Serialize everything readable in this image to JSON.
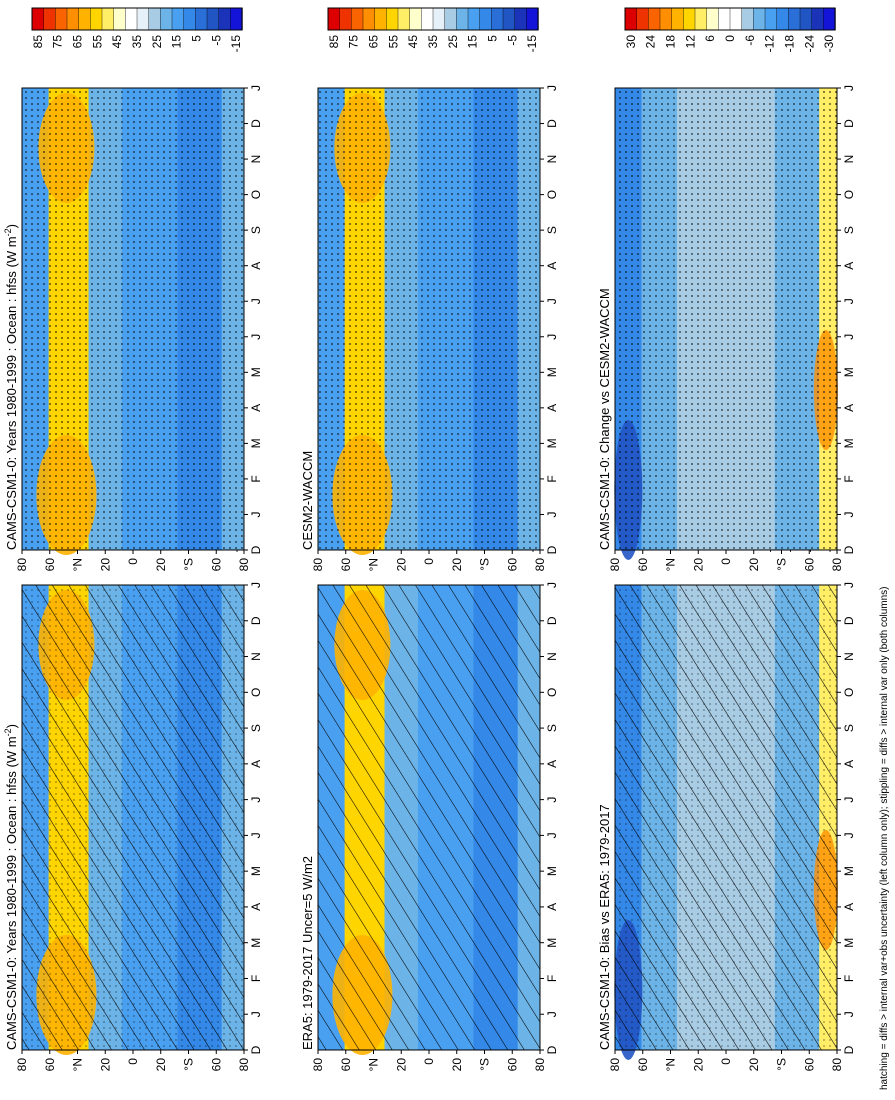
{
  "footer_note": "hatching = diffs > internal var+obs uncertainty (left column only); stippling = diffs > internal var only (both columns)",
  "colors": {
    "scale_mean": [
      "#dd0000",
      "#ee3300",
      "#f96400",
      "#ff8f00",
      "#ffb200",
      "#ffd500",
      "#ffee66",
      "#ffffcc",
      "#ffffff",
      "#e6f0f8",
      "#a8cce4",
      "#6cb4e8",
      "#4aa0f0",
      "#3388e8",
      "#2a6ed8",
      "#2255c4",
      "#1a33b8",
      "#1414d8"
    ],
    "scale_diff": [
      "#dd0000",
      "#ee3300",
      "#f96400",
      "#ff8f00",
      "#ffb200",
      "#ffd500",
      "#ffee66",
      "#ffffcc",
      "#ffffff",
      "#ffffff",
      "#a8cce4",
      "#6cb4e8",
      "#4aa0f0",
      "#3388e8",
      "#2a6ed8",
      "#2255c4",
      "#1a33b8",
      "#1414d8"
    ]
  },
  "chart_data": [
    {
      "type": "heatmap",
      "panel": "top-left",
      "title": "CAMS-CSM1-0: Years 1980-1999 : Ocean : hfss (W m⁻²)",
      "title_prefix": "CAMS-CSM1-0: Years 1980-1999 : Ocean : hfss (W m",
      "title_sup": "-2",
      "title_suffix": ")",
      "x_ticks": [
        "D",
        "J",
        "F",
        "M",
        "A",
        "M",
        "J",
        "J",
        "A",
        "S",
        "O",
        "N",
        "D",
        "J"
      ],
      "y_ticks": [
        "80",
        "60",
        "°N",
        "20",
        "0",
        "20",
        "°S",
        "60",
        "80"
      ],
      "colorbar_labels": [
        "85",
        "75",
        "65",
        "55",
        "45",
        "35",
        "25",
        "15",
        "5",
        "-5",
        "-15"
      ],
      "overlay": "hatching+stippling"
    },
    {
      "type": "heatmap",
      "panel": "top-right",
      "title": "CAMS-CSM1-0: Years 1980-1999 : Ocean : hfss (W m⁻²)",
      "title_prefix": "CAMS-CSM1-0: Years 1980-1999 : Ocean : hfss (W m",
      "title_sup": "-2",
      "title_suffix": ")",
      "x_ticks": [
        "D",
        "J",
        "F",
        "M",
        "A",
        "M",
        "J",
        "J",
        "A",
        "S",
        "O",
        "N",
        "D",
        "J"
      ],
      "y_ticks": [
        "80",
        "60",
        "°N",
        "20",
        "0",
        "20",
        "°S",
        "60",
        "80"
      ],
      "colorbar_labels": [
        "85",
        "75",
        "65",
        "55",
        "45",
        "35",
        "25",
        "15",
        "5",
        "-5",
        "-15"
      ],
      "overlay": "stippling"
    },
    {
      "type": "heatmap",
      "panel": "middle-left",
      "title": "ERA5: 1979-2017 Uncer=5 W/m2",
      "x_ticks": [
        "D",
        "J",
        "F",
        "M",
        "A",
        "M",
        "J",
        "J",
        "A",
        "S",
        "O",
        "N",
        "D",
        "J"
      ],
      "y_ticks": [
        "80",
        "60",
        "°N",
        "20",
        "0",
        "20",
        "°S",
        "60",
        "80"
      ],
      "colorbar_labels": [
        "85",
        "75",
        "65",
        "55",
        "45",
        "35",
        "25",
        "15",
        "5",
        "-5",
        "-15"
      ],
      "overlay": "hatching"
    },
    {
      "type": "heatmap",
      "panel": "middle-right",
      "title": "CESM2-WACCM",
      "x_ticks": [
        "D",
        "J",
        "F",
        "M",
        "A",
        "M",
        "J",
        "J",
        "A",
        "S",
        "O",
        "N",
        "D",
        "J"
      ],
      "y_ticks": [
        "80",
        "60",
        "°N",
        "20",
        "0",
        "20",
        "°S",
        "60",
        "80"
      ],
      "colorbar_labels": [
        "85",
        "75",
        "65",
        "55",
        "45",
        "35",
        "25",
        "15",
        "5",
        "-5",
        "-15"
      ],
      "overlay": "stippling"
    },
    {
      "type": "heatmap",
      "panel": "bottom-left",
      "title": "CAMS-CSM1-0: Bias vs ERA5: 1979-2017",
      "x_ticks": [
        "D",
        "J",
        "F",
        "M",
        "A",
        "M",
        "J",
        "J",
        "A",
        "S",
        "O",
        "N",
        "D",
        "J"
      ],
      "y_ticks": [
        "80",
        "60",
        "°N",
        "20",
        "0",
        "20",
        "°S",
        "60",
        "80"
      ],
      "colorbar_labels": [
        "30",
        "24",
        "18",
        "12",
        "6",
        "0",
        "-6",
        "-12",
        "-18",
        "-24",
        "-30"
      ],
      "overlay": "hatching+stippling"
    },
    {
      "type": "heatmap",
      "panel": "bottom-right",
      "title": "CAMS-CSM1-0: Change vs CESM2-WACCM",
      "x_ticks": [
        "D",
        "J",
        "F",
        "M",
        "A",
        "M",
        "J",
        "J",
        "A",
        "S",
        "O",
        "N",
        "D",
        "J"
      ],
      "y_ticks": [
        "80",
        "60",
        "°N",
        "20",
        "0",
        "20",
        "°S",
        "60",
        "80"
      ],
      "colorbar_labels": [
        "30",
        "24",
        "18",
        "12",
        "6",
        "0",
        "-6",
        "-12",
        "-18",
        "-24",
        "-30"
      ],
      "overlay": "stippling"
    }
  ]
}
